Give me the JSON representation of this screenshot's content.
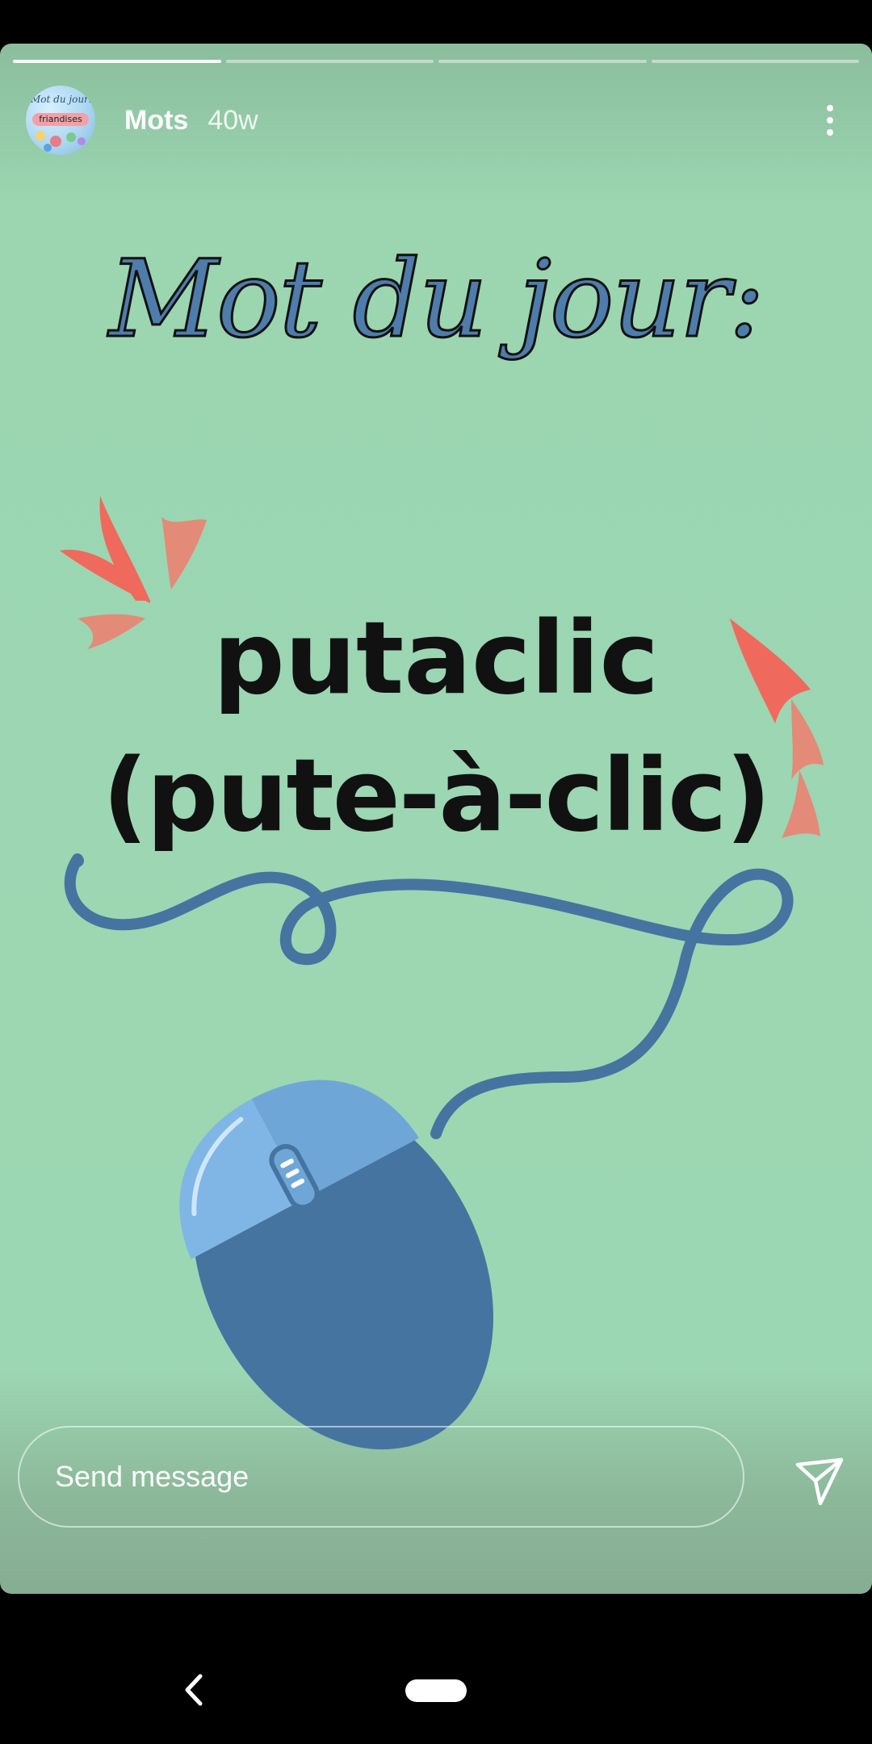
{
  "story": {
    "progress_segments": 4,
    "progress_done": 1,
    "username": "Mots",
    "time": "40w",
    "avatar": {
      "title": "Mot du jour:",
      "ribbon": "friandises"
    }
  },
  "art": {
    "heading": "Mot du jour:",
    "word": "putaclic",
    "word_full": "(pute-à-clic)",
    "colors": {
      "background": "#9cd7b3",
      "mouse_dark": "#4674a0",
      "mouse_light": "#6fa6d8",
      "accents": "#ef6a5c"
    }
  },
  "composer": {
    "placeholder": "Send message"
  },
  "icons": {
    "more": "more-vert-icon",
    "send": "paper-plane-icon",
    "back": "nav-back-icon",
    "home": "nav-home-pill"
  }
}
